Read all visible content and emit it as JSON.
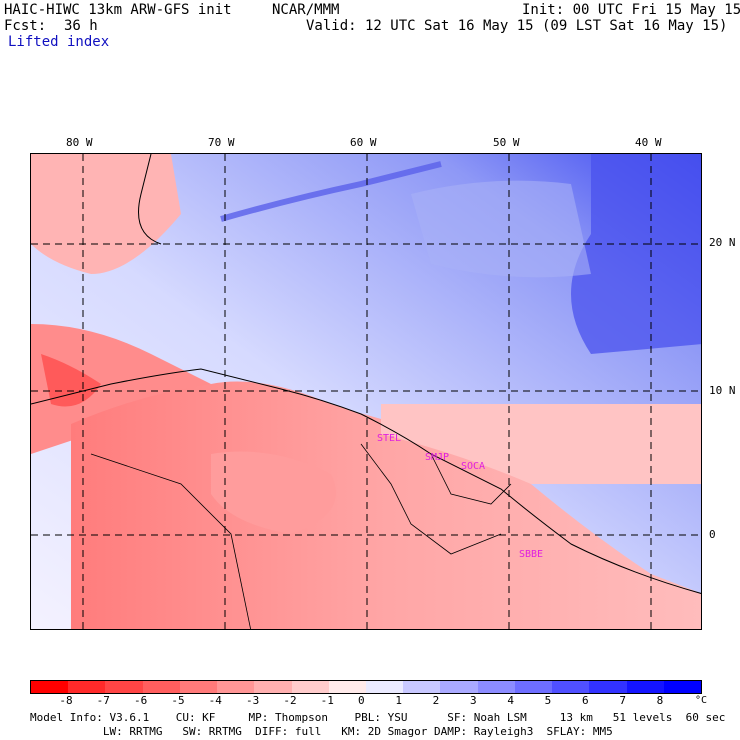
{
  "header": {
    "model_title": "HAIC-HIWC 13km ARW-GFS init",
    "org": "NCAR/MMM",
    "init": "Init: 00 UTC Fri 15 May 15",
    "fcst_label": "Fcst:",
    "fcst_value": "36 h",
    "valid": "Valid: 12 UTC Sat 16 May 15 (09 LST Sat 16 May 15)",
    "field": "Lifted index"
  },
  "map": {
    "lon_labels": [
      "80 W",
      "70 W",
      "60 W",
      "50 W",
      "40 W"
    ],
    "lat_labels": [
      "20 N",
      "10 N",
      "0"
    ],
    "stations": [
      "STEL",
      "SMJP",
      "SOCA",
      "SBBE"
    ]
  },
  "colorbar": {
    "ticks": [
      "-8",
      "-7",
      "-6",
      "-5",
      "-4",
      "-3",
      "-2",
      "-1",
      "0",
      "1",
      "2",
      "3",
      "4",
      "5",
      "6",
      "7",
      "8"
    ],
    "unit": "°C",
    "colors": [
      "#ff0000",
      "#ff2a2a",
      "#ff4545",
      "#ff5e5e",
      "#ff7a7a",
      "#ff9696",
      "#ffb0b0",
      "#ffcccc",
      "#ffeaea",
      "#eaeaff",
      "#c8c8ff",
      "#aaaaff",
      "#8c8cff",
      "#6e6eff",
      "#5050ff",
      "#3232ff",
      "#1414ff",
      "#0000ff"
    ]
  },
  "model_info": {
    "line1": "Model Info: V3.6.1    CU: KF     MP: Thompson    PBL: YSU      SF: Noah LSM     13 km   51 levels  60 sec",
    "line2": "           LW: RRTMG   SW: RRTMG  DIFF: full   KM: 2D Smagor DAMP: Rayleigh3  SFLAY: MM5"
  }
}
